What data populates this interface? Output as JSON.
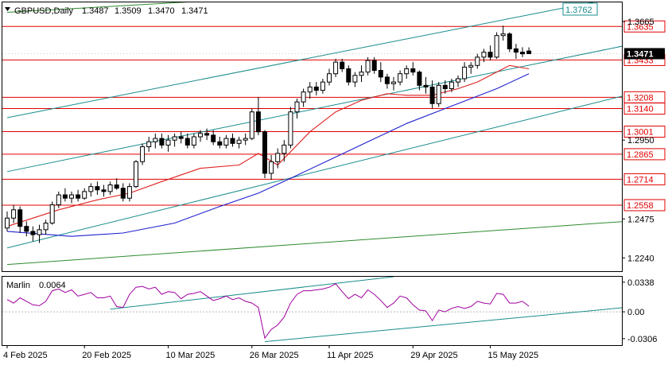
{
  "chart_data": {
    "type": "candlestick",
    "title": "GBPUSD,Daily",
    "ohlc_readout": [
      "1.3487",
      "1.3509",
      "1.3470",
      "1.3471"
    ],
    "current_price": "1.3471",
    "ylim": [
      1.216,
      1.378
    ],
    "price_ticks": [
      "1.3665",
      "1.2950",
      "1.2475",
      "1.2240"
    ],
    "levels": [
      {
        "value": 1.3635,
        "label": "1.3635"
      },
      {
        "value": 1.3433,
        "label": "1.3433"
      },
      {
        "value": 1.3208,
        "label": "1.3208"
      },
      {
        "value": 1.314,
        "label": "1.3140"
      },
      {
        "value": 1.3001,
        "label": "1.3001"
      },
      {
        "value": 1.2865,
        "label": "1.2865"
      },
      {
        "value": 1.2714,
        "label": "1.2714"
      },
      {
        "value": 1.2558,
        "label": "1.2558"
      }
    ],
    "channel_label": "1.3762",
    "x_labels": [
      "4 Feb 2025",
      "20 Feb 2025",
      "10 Mar 2025",
      "26 Mar 2025",
      "11 Apr 2025",
      "29 Apr 2025",
      "15 May 2025"
    ],
    "x_label_index": [
      0,
      12,
      25,
      38,
      50,
      63,
      75
    ],
    "candles": [
      [
        1.242,
        1.252,
        1.24,
        1.248
      ],
      [
        1.248,
        1.256,
        1.245,
        1.253
      ],
      [
        1.253,
        1.255,
        1.239,
        1.243
      ],
      [
        1.243,
        1.246,
        1.237,
        1.24
      ],
      [
        1.24,
        1.243,
        1.234,
        1.238
      ],
      [
        1.238,
        1.244,
        1.233,
        1.241
      ],
      [
        1.241,
        1.247,
        1.238,
        1.245
      ],
      [
        1.245,
        1.258,
        1.244,
        1.256
      ],
      [
        1.256,
        1.264,
        1.254,
        1.262
      ],
      [
        1.262,
        1.266,
        1.258,
        1.26
      ],
      [
        1.26,
        1.264,
        1.257,
        1.262
      ],
      [
        1.262,
        1.265,
        1.258,
        1.26
      ],
      [
        1.26,
        1.266,
        1.259,
        1.264
      ],
      [
        1.264,
        1.269,
        1.261,
        1.267
      ],
      [
        1.267,
        1.27,
        1.262,
        1.265
      ],
      [
        1.265,
        1.268,
        1.261,
        1.264
      ],
      [
        1.264,
        1.27,
        1.262,
        1.268
      ],
      [
        1.268,
        1.272,
        1.265,
        1.266
      ],
      [
        1.266,
        1.269,
        1.258,
        1.26
      ],
      [
        1.26,
        1.269,
        1.258,
        1.267
      ],
      [
        1.267,
        1.283,
        1.266,
        1.282
      ],
      [
        1.282,
        1.293,
        1.28,
        1.291
      ],
      [
        1.291,
        1.297,
        1.288,
        1.294
      ],
      [
        1.294,
        1.299,
        1.29,
        1.296
      ],
      [
        1.296,
        1.299,
        1.29,
        1.292
      ],
      [
        1.292,
        1.298,
        1.288,
        1.295
      ],
      [
        1.295,
        1.299,
        1.291,
        1.297
      ],
      [
        1.297,
        1.3,
        1.293,
        1.296
      ],
      [
        1.296,
        1.299,
        1.29,
        1.292
      ],
      [
        1.292,
        1.299,
        1.29,
        1.297
      ],
      [
        1.297,
        1.301,
        1.294,
        1.299
      ],
      [
        1.299,
        1.302,
        1.295,
        1.298
      ],
      [
        1.298,
        1.301,
        1.292,
        1.294
      ],
      [
        1.294,
        1.297,
        1.29,
        1.292
      ],
      [
        1.292,
        1.298,
        1.29,
        1.296
      ],
      [
        1.296,
        1.299,
        1.291,
        1.293
      ],
      [
        1.293,
        1.297,
        1.29,
        1.295
      ],
      [
        1.295,
        1.299,
        1.292,
        1.296
      ],
      [
        1.296,
        1.314,
        1.295,
        1.312
      ],
      [
        1.312,
        1.321,
        1.298,
        1.3
      ],
      [
        1.3,
        1.301,
        1.272,
        1.275
      ],
      [
        1.275,
        1.286,
        1.271,
        1.282
      ],
      [
        1.282,
        1.29,
        1.278,
        1.287
      ],
      [
        1.287,
        1.295,
        1.282,
        1.292
      ],
      [
        1.292,
        1.315,
        1.29,
        1.312
      ],
      [
        1.312,
        1.32,
        1.308,
        1.318
      ],
      [
        1.318,
        1.326,
        1.315,
        1.324
      ],
      [
        1.324,
        1.33,
        1.32,
        1.327
      ],
      [
        1.327,
        1.33,
        1.322,
        1.325
      ],
      [
        1.325,
        1.332,
        1.323,
        1.33
      ],
      [
        1.33,
        1.338,
        1.328,
        1.335
      ],
      [
        1.335,
        1.344,
        1.333,
        1.342
      ],
      [
        1.342,
        1.344,
        1.336,
        1.338
      ],
      [
        1.338,
        1.34,
        1.328,
        1.33
      ],
      [
        1.33,
        1.336,
        1.327,
        1.334
      ],
      [
        1.334,
        1.34,
        1.33,
        1.336
      ],
      [
        1.336,
        1.345,
        1.334,
        1.343
      ],
      [
        1.343,
        1.345,
        1.335,
        1.337
      ],
      [
        1.337,
        1.342,
        1.33,
        1.333
      ],
      [
        1.333,
        1.335,
        1.326,
        1.329
      ],
      [
        1.329,
        1.333,
        1.325,
        1.33
      ],
      [
        1.33,
        1.337,
        1.328,
        1.335
      ],
      [
        1.335,
        1.34,
        1.332,
        1.338
      ],
      [
        1.338,
        1.342,
        1.334,
        1.336
      ],
      [
        1.336,
        1.337,
        1.325,
        1.328
      ],
      [
        1.328,
        1.333,
        1.323,
        1.327
      ],
      [
        1.327,
        1.331,
        1.314,
        1.317
      ],
      [
        1.317,
        1.33,
        1.315,
        1.328
      ],
      [
        1.328,
        1.331,
        1.323,
        1.326
      ],
      [
        1.326,
        1.332,
        1.324,
        1.33
      ],
      [
        1.33,
        1.334,
        1.327,
        1.332
      ],
      [
        1.332,
        1.342,
        1.33,
        1.339
      ],
      [
        1.339,
        1.342,
        1.335,
        1.34
      ],
      [
        1.34,
        1.347,
        1.338,
        1.345
      ],
      [
        1.345,
        1.35,
        1.342,
        1.348
      ],
      [
        1.348,
        1.352,
        1.343,
        1.345
      ],
      [
        1.345,
        1.36,
        1.344,
        1.358
      ],
      [
        1.358,
        1.364,
        1.355,
        1.359
      ],
      [
        1.359,
        1.36,
        1.348,
        1.35
      ],
      [
        1.35,
        1.353,
        1.344,
        1.348
      ],
      [
        1.348,
        1.351,
        1.345,
        1.347
      ],
      [
        1.3487,
        1.3509,
        1.347,
        1.3471
      ]
    ],
    "ma_fast": [
      [
        0,
        1.243
      ],
      [
        8,
        1.253
      ],
      [
        14,
        1.259
      ],
      [
        19,
        1.263
      ],
      [
        24,
        1.27
      ],
      [
        30,
        1.278
      ],
      [
        36,
        1.28
      ],
      [
        39,
        1.287
      ],
      [
        42,
        1.28
      ],
      [
        47,
        1.3
      ],
      [
        51,
        1.312
      ],
      [
        55,
        1.319
      ],
      [
        59,
        1.323
      ],
      [
        62,
        1.322
      ],
      [
        66,
        1.322
      ],
      [
        70,
        1.326
      ],
      [
        73,
        1.33
      ],
      [
        76,
        1.336
      ],
      [
        78,
        1.34
      ],
      [
        81,
        1.338
      ]
    ],
    "ma_slow": [
      [
        0,
        1.24
      ],
      [
        10,
        1.237
      ],
      [
        18,
        1.239
      ],
      [
        26,
        1.245
      ],
      [
        33,
        1.255
      ],
      [
        39,
        1.263
      ],
      [
        44,
        1.272
      ],
      [
        50,
        1.283
      ],
      [
        56,
        1.294
      ],
      [
        62,
        1.305
      ],
      [
        68,
        1.314
      ],
      [
        72,
        1.32
      ],
      [
        76,
        1.326
      ],
      [
        81,
        1.335
      ]
    ],
    "channel_lines": [
      {
        "from": [
          0,
          1.3085
        ],
        "to": [
          96,
          1.382
        ],
        "color": "#1a8c8c"
      },
      {
        "from": [
          0,
          1.276
        ],
        "to": [
          96,
          1.352
        ],
        "color": "#1a8c8c"
      },
      {
        "from": [
          0,
          1.23
        ],
        "to": [
          96,
          1.322
        ],
        "color": "#1a8c8c"
      },
      {
        "from": [
          0,
          1.22
        ],
        "to": [
          96,
          1.246
        ],
        "color": "#2e8b2e"
      },
      {
        "from": [
          0,
          1.372
        ],
        "to": [
          36,
          1.38
        ],
        "color": "#2e8b2e"
      }
    ],
    "indicator": {
      "name": "Marlin",
      "value": "0.0064",
      "ticks": [
        "0.0338",
        "0.00",
        "-0.0306"
      ],
      "ylim": [
        -0.038,
        0.04
      ],
      "zero": 0.0,
      "series": [
        [
          0,
          0.014
        ],
        [
          1,
          0.01
        ],
        [
          2,
          0.016
        ],
        [
          3,
          0.012
        ],
        [
          4,
          0.008
        ],
        [
          5,
          0.007
        ],
        [
          6,
          0.012
        ],
        [
          7,
          0.024
        ],
        [
          8,
          0.026
        ],
        [
          9,
          0.022
        ],
        [
          10,
          0.025
        ],
        [
          11,
          0.018
        ],
        [
          12,
          0.02
        ],
        [
          13,
          0.022
        ],
        [
          14,
          0.016
        ],
        [
          15,
          0.016
        ],
        [
          16,
          0.018
        ],
        [
          17,
          0.006
        ],
        [
          18,
          0.005
        ],
        [
          19,
          0.02
        ],
        [
          20,
          0.028
        ],
        [
          21,
          0.029
        ],
        [
          22,
          0.026
        ],
        [
          23,
          0.028
        ],
        [
          24,
          0.02
        ],
        [
          25,
          0.023
        ],
        [
          26,
          0.022
        ],
        [
          27,
          0.015
        ],
        [
          28,
          0.02
        ],
        [
          29,
          0.021
        ],
        [
          30,
          0.023
        ],
        [
          31,
          0.018
        ],
        [
          32,
          0.013
        ],
        [
          33,
          0.015
        ],
        [
          34,
          0.018
        ],
        [
          35,
          0.014
        ],
        [
          36,
          0.016
        ],
        [
          37,
          0.012
        ],
        [
          38,
          0.01
        ],
        [
          39,
          0.005
        ],
        [
          40,
          -0.03
        ],
        [
          41,
          -0.02
        ],
        [
          42,
          -0.015
        ],
        [
          43,
          -0.006
        ],
        [
          44,
          0.01
        ],
        [
          45,
          0.02
        ],
        [
          46,
          0.024
        ],
        [
          47,
          0.024
        ],
        [
          48,
          0.025
        ],
        [
          49,
          0.026
        ],
        [
          50,
          0.028
        ],
        [
          51,
          0.032
        ],
        [
          52,
          0.023
        ],
        [
          53,
          0.015
        ],
        [
          54,
          0.02
        ],
        [
          55,
          0.016
        ],
        [
          56,
          0.025
        ],
        [
          57,
          0.02
        ],
        [
          58,
          0.013
        ],
        [
          59,
          0.005
        ],
        [
          60,
          0.01
        ],
        [
          61,
          0.018
        ],
        [
          62,
          0.016
        ],
        [
          63,
          0.008
        ],
        [
          64,
          0.002
        ],
        [
          65,
          0.001
        ],
        [
          66,
          -0.01
        ],
        [
          67,
          0.002
        ],
        [
          68,
          0.0
        ],
        [
          69,
          0.004
        ],
        [
          70,
          0.006
        ],
        [
          71,
          0.004
        ],
        [
          72,
          0.006
        ],
        [
          73,
          0.012
        ],
        [
          74,
          0.01
        ],
        [
          75,
          0.009
        ],
        [
          76,
          0.021
        ],
        [
          77,
          0.02
        ],
        [
          78,
          0.01
        ],
        [
          79,
          0.01
        ],
        [
          80,
          0.012
        ],
        [
          81,
          0.0064
        ]
      ],
      "lines": [
        {
          "from": [
            16,
            0.003
          ],
          "to": [
            60,
            0.04
          ],
          "color": "#1a8c8c"
        },
        {
          "from": [
            40,
            -0.034
          ],
          "to": [
            96,
            0.005
          ],
          "color": "#1a8c8c"
        }
      ]
    },
    "colors": {
      "candle_stroke": "#000000",
      "bull_fill": "#ffffff",
      "bear_fill": "#000000",
      "level_line": "#e00000",
      "level_label_text": "#e00000",
      "ma_fast": "#e02020",
      "ma_slow": "#2020d0",
      "indicator_line": "#a000a0",
      "channel_label_text": "#1a8c8c",
      "price_box_bg": "#000000",
      "price_box_text": "#ffffff"
    }
  }
}
